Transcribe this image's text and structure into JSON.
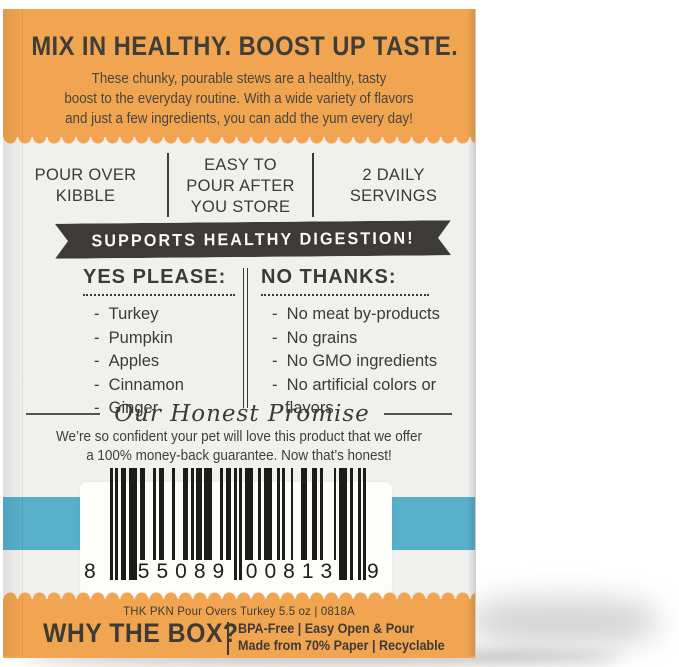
{
  "product": {
    "top": {
      "title": "MIX IN HEALTHY. BOOST UP TASTE.",
      "subtitle": "These chunky, pourable stews are a healthy, tasty\nboost to the everyday routine. With a wide variety of flavors\nand just a few ingredients, you can add the yum every day!"
    },
    "benefits": [
      {
        "label": "POUR OVER\nKIBBLE"
      },
      {
        "label": "EASY TO\nPOUR AFTER\nYOU STORE"
      },
      {
        "label": "2 DAILY\nSERVINGS"
      }
    ],
    "ribbon": {
      "label": "SUPPORTS HEALTHY DIGESTION!"
    },
    "yes_no": {
      "yes_heading": "YES PLEASE:",
      "yes_items": [
        "Turkey",
        "Pumpkin",
        "Apples",
        "Cinnamon",
        "Ginger"
      ],
      "no_heading": "NO THANKS:",
      "no_items": [
        "No meat by-products",
        "No grains",
        "No GMO ingredients",
        "No artificial colors or flavors"
      ]
    },
    "promise": {
      "heading": "Our Honest Promise",
      "body": "We’re so confident your pet will love this product that we offer\na 100% money-back guarantee. Now that’s honest!"
    },
    "barcode": {
      "digits": "855089008139",
      "display_first": "8",
      "display_left": "55089",
      "display_right": "00813",
      "display_last": "9"
    },
    "footer": {
      "product_code": "THK PKN Pour Overs Turkey 5.5 oz | 0818A",
      "why_heading": "WHY THE BOX?",
      "why_lines": [
        "BPA-Free | Easy Open & Pour",
        "Made from 70% Paper | Recyclable"
      ]
    },
    "colors": {
      "orange": "#F2A550",
      "blue": "#57AFCB",
      "charcoal": "#3C3B39",
      "cream": "#F0F0EE",
      "label_white": "#FDFDFC",
      "bar_black": "#1C1C1B"
    }
  }
}
